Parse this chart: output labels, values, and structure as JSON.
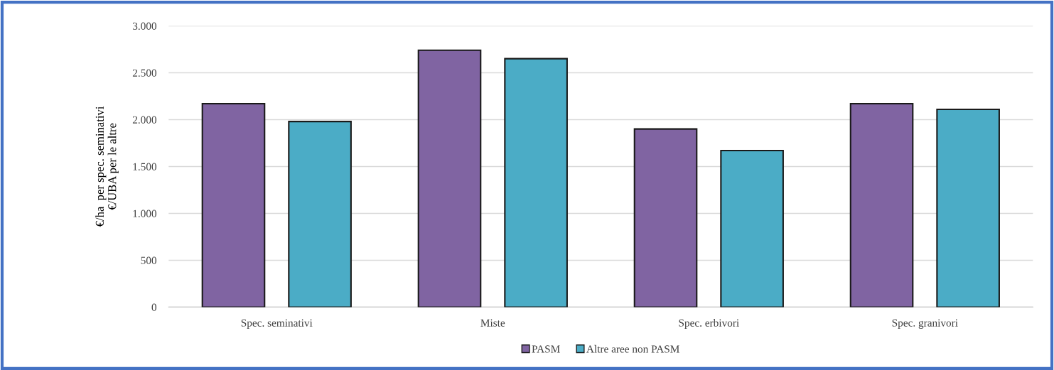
{
  "chart_data": {
    "type": "bar",
    "ylabel": "€/ha  per spec. seminativi\n€/UBA per le altre",
    "categories": [
      "Spec. seminativi",
      "Miste",
      "Spec. erbivori",
      "Spec. granivori"
    ],
    "series": [
      {
        "name": "PASM",
        "color": "#8064a2",
        "values": [
          2170,
          2740,
          1900,
          2170
        ]
      },
      {
        "name": "Altre aree non PASM",
        "color": "#4bacc6",
        "values": [
          1980,
          2650,
          1670,
          2110
        ]
      }
    ],
    "ylim": [
      0,
      3000
    ],
    "yticks": [
      {
        "value": 0,
        "label": "0"
      },
      {
        "value": 500,
        "label": "500"
      },
      {
        "value": 1000,
        "label": "1.000"
      },
      {
        "value": 1500,
        "label": "1.500"
      },
      {
        "value": 2000,
        "label": "2.000"
      },
      {
        "value": 2500,
        "label": "2.500"
      },
      {
        "value": 3000,
        "label": "3.000"
      }
    ],
    "grid": "y",
    "legend": "bottom"
  }
}
